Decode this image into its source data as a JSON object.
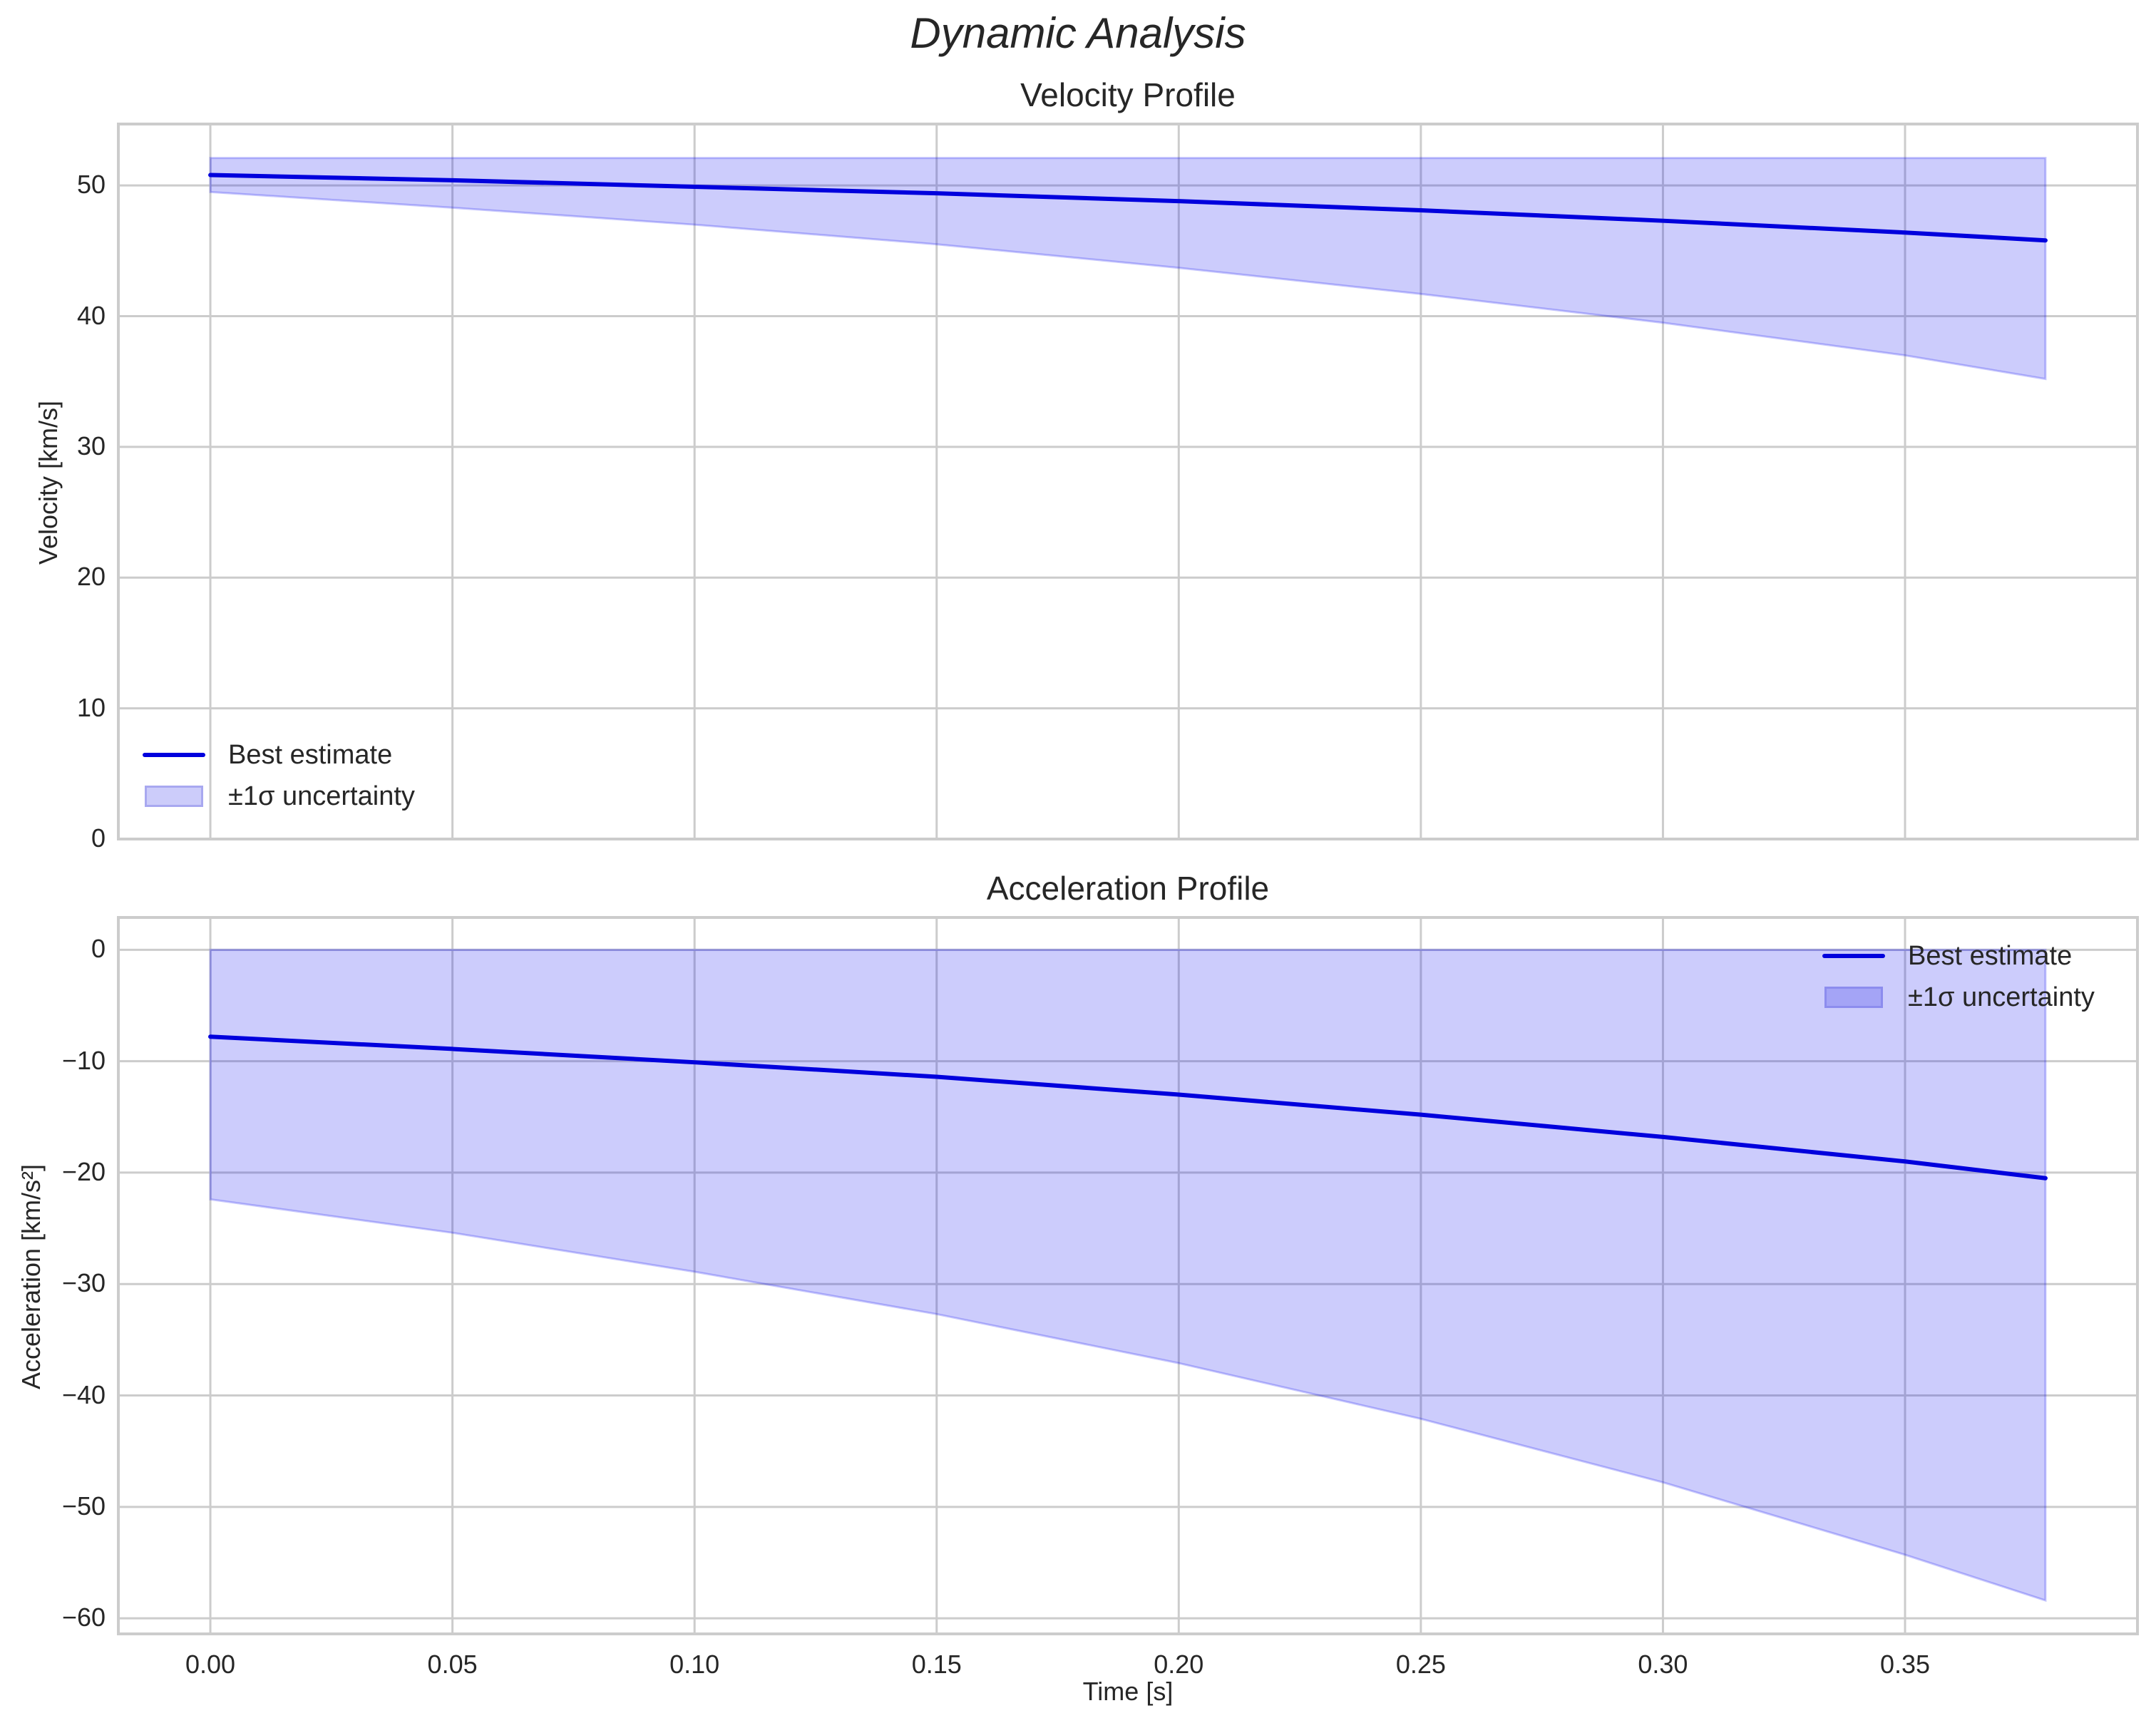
{
  "figure": {
    "suptitle": "Dynamic Analysis",
    "colors": {
      "line": "#0000dd",
      "band_fill": "#ccccfa",
      "band_edge": "#a0a0ee",
      "grid": "#cccccc",
      "text": "#262626"
    }
  },
  "chart_data": [
    {
      "type": "line",
      "title": "Velocity Profile",
      "xlabel": "",
      "ylabel": "Velocity [km/s]",
      "xlim": [
        -0.019,
        0.398
      ],
      "ylim": [
        0,
        54.7
      ],
      "xticks": [
        0.0,
        0.05,
        0.1,
        0.15,
        0.2,
        0.25,
        0.3,
        0.35
      ],
      "xtick_labels": [],
      "yticks": [
        0,
        10,
        20,
        30,
        40,
        50
      ],
      "ytick_labels": [
        "0",
        "10",
        "20",
        "30",
        "40",
        "50"
      ],
      "grid": true,
      "legend": {
        "position": "lower left",
        "entries": [
          "Best estimate",
          "±1σ uncertainty"
        ]
      },
      "x": [
        0.0,
        0.05,
        0.1,
        0.15,
        0.2,
        0.25,
        0.3,
        0.35,
        0.379
      ],
      "series": [
        {
          "name": "Best estimate",
          "kind": "line",
          "values": [
            50.8,
            50.4,
            49.9,
            49.4,
            48.8,
            48.1,
            47.3,
            46.4,
            45.8
          ]
        },
        {
          "name": "±1σ uncertainty (upper)",
          "kind": "band_upper",
          "values": [
            52.1,
            52.1,
            52.1,
            52.1,
            52.1,
            52.1,
            52.1,
            52.1,
            52.1
          ]
        },
        {
          "name": "±1σ uncertainty (lower)",
          "kind": "band_lower",
          "values": [
            49.5,
            48.3,
            47.0,
            45.5,
            43.7,
            41.7,
            39.5,
            37.0,
            35.2
          ]
        }
      ]
    },
    {
      "type": "line",
      "title": "Acceleration Profile",
      "xlabel": "Time [s]",
      "ylabel": "Acceleration [km/s²]",
      "xlim": [
        -0.019,
        0.398
      ],
      "ylim": [
        -61.4,
        2.9
      ],
      "xticks": [
        0.0,
        0.05,
        0.1,
        0.15,
        0.2,
        0.25,
        0.3,
        0.35
      ],
      "xtick_labels": [
        "0.00",
        "0.05",
        "0.10",
        "0.15",
        "0.20",
        "0.25",
        "0.30",
        "0.35"
      ],
      "yticks": [
        0,
        -10,
        -20,
        -30,
        -40,
        -50,
        -60
      ],
      "ytick_labels": [
        "0",
        "−10",
        "−20",
        "−30",
        "−40",
        "−50",
        "−60"
      ],
      "grid": true,
      "legend": {
        "position": "upper right",
        "entries": [
          "Best estimate",
          "±1σ uncertainty"
        ]
      },
      "x": [
        0.0,
        0.05,
        0.1,
        0.15,
        0.2,
        0.25,
        0.3,
        0.35,
        0.379
      ],
      "series": [
        {
          "name": "Best estimate",
          "kind": "line",
          "values": [
            -7.8,
            -8.9,
            -10.1,
            -11.4,
            -13.0,
            -14.8,
            -16.8,
            -19.0,
            -20.5
          ]
        },
        {
          "name": "±1σ uncertainty (upper)",
          "kind": "band_upper",
          "values": [
            0,
            0,
            0,
            0,
            0,
            0,
            0,
            0,
            0
          ]
        },
        {
          "name": "±1σ uncertainty (lower)",
          "kind": "band_lower",
          "values": [
            -22.4,
            -25.4,
            -28.9,
            -32.7,
            -37.1,
            -42.1,
            -47.8,
            -54.3,
            -58.4
          ]
        }
      ]
    }
  ]
}
